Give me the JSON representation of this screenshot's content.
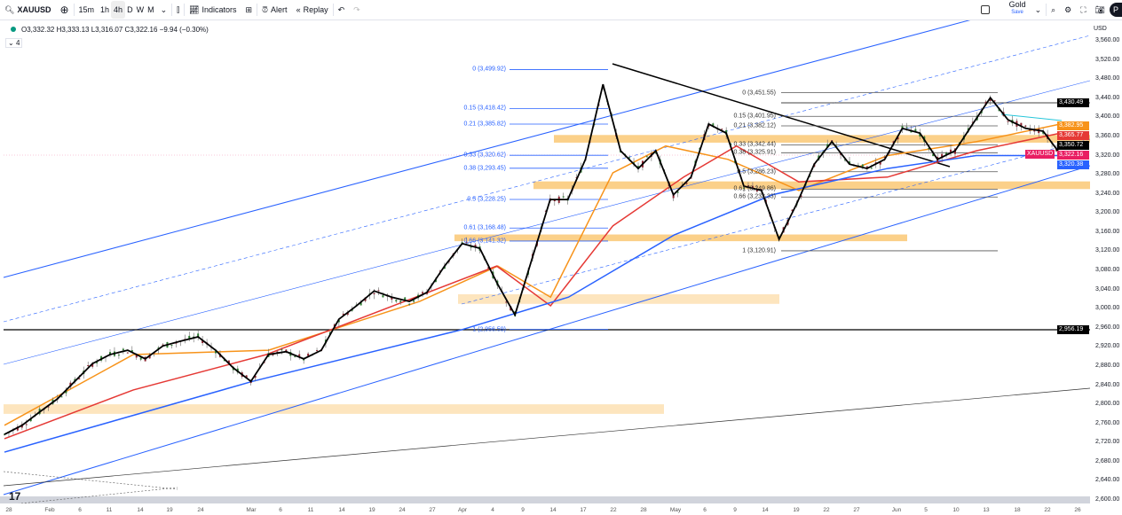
{
  "toolbar": {
    "symbol": "XAUUSD",
    "intervals": [
      "15m",
      "1h",
      "4h",
      "D",
      "W",
      "M"
    ],
    "active_interval": "4h",
    "indicators": "Indicators",
    "alert": "Alert",
    "replay": "Replay",
    "layout_name": "Gold",
    "layout_save": "Save",
    "avatar": "P"
  },
  "legend": {
    "ohlc": "O3,332.32 H3,333.13 L3,316.07 C3,322.16 −9.94 (−0.30%)",
    "collapsed_count": "4"
  },
  "price_axis": {
    "currency": "USD",
    "ticks": [
      "3,560.00",
      "3,520.00",
      "3,480.00",
      "3,440.00",
      "3,400.00",
      "3,360.00",
      "3,320.00",
      "3,280.00",
      "3,240.00",
      "3,200.00",
      "3,160.00",
      "3,120.00",
      "3,080.00",
      "3,040.00",
      "3,000.00",
      "2,960.00",
      "2,920.00",
      "2,880.00",
      "2,840.00",
      "2,800.00",
      "2,760.00",
      "2,720.00",
      "2,680.00",
      "2,640.00",
      "2,600.00"
    ],
    "badges": [
      {
        "text": "3,430.49",
        "price": 3430.49,
        "color": "#000000"
      },
      {
        "text": "3,382.95",
        "price": 3382.95,
        "color": "#f7931a"
      },
      {
        "text": "3,365.77",
        "price": 3365.77,
        "color": "#e53935"
      },
      {
        "text": "3,350.72",
        "price": 3350.72,
        "color": "#000000"
      },
      {
        "text": "3,322.16",
        "price": 3322.16,
        "color": "#e91e63"
      },
      {
        "text": "3,320.38",
        "price": 3320.38,
        "color": "#2962ff"
      },
      {
        "text": "2,956.19",
        "price": 2956.19,
        "color": "#000000"
      }
    ],
    "symbol_badge": "XAUUSD"
  },
  "time_axis": [
    "28",
    "Feb",
    "6",
    "11",
    "14",
    "19",
    "24",
    "Mar",
    "6",
    "11",
    "14",
    "19",
    "24",
    "27",
    "Apr",
    "4",
    "9",
    "14",
    "17",
    "22",
    "28",
    "May",
    "6",
    "9",
    "14",
    "19",
    "22",
    "27",
    "Jun",
    "5",
    "10",
    "13",
    "18",
    "22",
    "26"
  ],
  "fib1": [
    {
      "label": "0 (3,499.92)",
      "price": 3499.92
    },
    {
      "label": "0.15 (3,418.42)",
      "price": 3418.42
    },
    {
      "label": "0.21 (3,385.82)",
      "price": 3385.82
    },
    {
      "label": "0.33 (3,320.62)",
      "price": 3320.62
    },
    {
      "label": "0.38 (3,293.45)",
      "price": 3293.45
    },
    {
      "label": "0.5 (3,228.25)",
      "price": 3228.25
    },
    {
      "label": "0.61 (3,168.48)",
      "price": 3168.48
    },
    {
      "label": "0.66 (3,141.32)",
      "price": 3141.32
    },
    {
      "label": "1 (2,956.59)",
      "price": 2956.59
    }
  ],
  "fib2": [
    {
      "label": "0 (3,451.55)",
      "price": 3451.55
    },
    {
      "label": "0.15 (3,401.95)",
      "price": 3401.95
    },
    {
      "label": "0.21 (3,382.12)",
      "price": 3382.12
    },
    {
      "label": "0.33 (3,342.44)",
      "price": 3342.44
    },
    {
      "label": "0.38 (3,325.91)",
      "price": 3325.91
    },
    {
      "label": "0.5 (3,286.23)",
      "price": 3286.23
    },
    {
      "label": "0.61 (3,249.86)",
      "price": 3249.86
    },
    {
      "label": "0.66 (3,233.33)",
      "price": 3233.33
    },
    {
      "label": "1 (3,120.91)",
      "price": 3120.91
    }
  ],
  "chart_data": {
    "type": "line",
    "title": "XAUUSD 4h",
    "ylim": [
      2600,
      3560
    ],
    "series": [
      {
        "name": "price",
        "color": "#000000",
        "values": [
          2737,
          2756,
          2784,
          2811,
          2848,
          2885,
          2904,
          2913,
          2895,
          2922,
          2932,
          2941,
          2913,
          2876,
          2848,
          2904,
          2910,
          2895,
          2913,
          2978,
          3006,
          3037,
          3024,
          3015,
          3034,
          3089,
          3136,
          3126,
          3052,
          2987,
          3108,
          3228,
          3228,
          3312,
          3469,
          3330,
          3293,
          3330,
          3238,
          3275,
          3386,
          3367,
          3256,
          3247,
          3145,
          3219,
          3302,
          3349,
          3302,
          3293,
          3312,
          3377,
          3367,
          3312,
          3330,
          3386,
          3441,
          3395,
          3377,
          3371,
          3322
        ]
      },
      {
        "name": "ma-orange",
        "color": "#f7931a",
        "points": [
          [
            0,
            2756
          ],
          [
            0.122,
            2904
          ],
          [
            0.25,
            2913
          ],
          [
            0.393,
            3015
          ],
          [
            0.467,
            3089
          ],
          [
            0.517,
            3024
          ],
          [
            0.576,
            3284
          ],
          [
            0.626,
            3340
          ],
          [
            0.685,
            3312
          ],
          [
            0.752,
            3247
          ],
          [
            0.836,
            3320
          ],
          [
            0.92,
            3349
          ],
          [
            1,
            3386
          ]
        ]
      },
      {
        "name": "ma-red",
        "color": "#e53935",
        "points": [
          [
            0,
            2728
          ],
          [
            0.122,
            2830
          ],
          [
            0.248,
            2904
          ],
          [
            0.466,
            3089
          ],
          [
            0.517,
            3006
          ],
          [
            0.576,
            3173
          ],
          [
            0.643,
            3275
          ],
          [
            0.693,
            3340
          ],
          [
            0.752,
            3265
          ],
          [
            0.836,
            3275
          ],
          [
            0.92,
            3330
          ],
          [
            1,
            3367
          ]
        ]
      },
      {
        "name": "ma-blue",
        "color": "#2962ff",
        "points": [
          [
            0,
            2700
          ],
          [
            0.235,
            2848
          ],
          [
            0.433,
            2956
          ],
          [
            0.534,
            3024
          ],
          [
            0.634,
            3154
          ],
          [
            0.727,
            3238
          ],
          [
            0.836,
            3293
          ],
          [
            0.92,
            3320
          ],
          [
            1,
            3320
          ]
        ]
      }
    ]
  }
}
